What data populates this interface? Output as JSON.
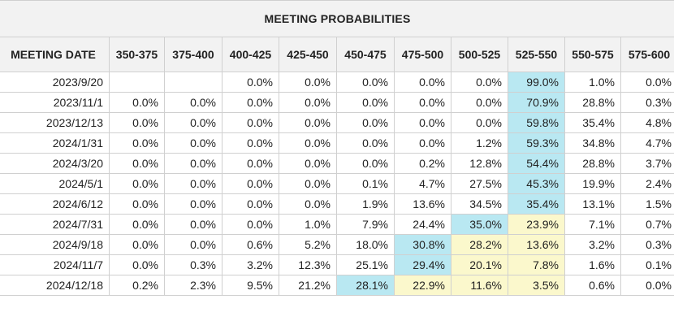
{
  "title": "MEETING PROBABILITIES",
  "colors": {
    "current_target": "#b9e8f2",
    "above_current": "#fbf8cc",
    "header_bg": "#f2f2f2"
  },
  "columns": [
    "MEETING DATE",
    "350-375",
    "375-400",
    "400-425",
    "425-450",
    "450-475",
    "475-500",
    "500-525",
    "525-550",
    "550-575",
    "575-600"
  ],
  "rows": [
    {
      "date": "2023/9/20",
      "cells": [
        "",
        "",
        "0.0%",
        "0.0%",
        "0.0%",
        "0.0%",
        "0.0%",
        "99.0%",
        "1.0%",
        "0.0%"
      ],
      "hl": [
        "",
        "",
        "",
        "",
        "",
        "",
        "",
        "b",
        "",
        ""
      ]
    },
    {
      "date": "2023/11/1",
      "cells": [
        "0.0%",
        "0.0%",
        "0.0%",
        "0.0%",
        "0.0%",
        "0.0%",
        "0.0%",
        "70.9%",
        "28.8%",
        "0.3%"
      ],
      "hl": [
        "",
        "",
        "",
        "",
        "",
        "",
        "",
        "b",
        "",
        ""
      ]
    },
    {
      "date": "2023/12/13",
      "cells": [
        "0.0%",
        "0.0%",
        "0.0%",
        "0.0%",
        "0.0%",
        "0.0%",
        "0.0%",
        "59.8%",
        "35.4%",
        "4.8%"
      ],
      "hl": [
        "",
        "",
        "",
        "",
        "",
        "",
        "",
        "b",
        "",
        ""
      ]
    },
    {
      "date": "2024/1/31",
      "cells": [
        "0.0%",
        "0.0%",
        "0.0%",
        "0.0%",
        "0.0%",
        "0.0%",
        "1.2%",
        "59.3%",
        "34.8%",
        "4.7%"
      ],
      "hl": [
        "",
        "",
        "",
        "",
        "",
        "",
        "",
        "b",
        "",
        ""
      ]
    },
    {
      "date": "2024/3/20",
      "cells": [
        "0.0%",
        "0.0%",
        "0.0%",
        "0.0%",
        "0.0%",
        "0.2%",
        "12.8%",
        "54.4%",
        "28.8%",
        "3.7%"
      ],
      "hl": [
        "",
        "",
        "",
        "",
        "",
        "",
        "",
        "b",
        "",
        ""
      ]
    },
    {
      "date": "2024/5/1",
      "cells": [
        "0.0%",
        "0.0%",
        "0.0%",
        "0.0%",
        "0.1%",
        "4.7%",
        "27.5%",
        "45.3%",
        "19.9%",
        "2.4%"
      ],
      "hl": [
        "",
        "",
        "",
        "",
        "",
        "",
        "",
        "b",
        "",
        ""
      ]
    },
    {
      "date": "2024/6/12",
      "cells": [
        "0.0%",
        "0.0%",
        "0.0%",
        "0.0%",
        "1.9%",
        "13.6%",
        "34.5%",
        "35.4%",
        "13.1%",
        "1.5%"
      ],
      "hl": [
        "",
        "",
        "",
        "",
        "",
        "",
        "",
        "b",
        "",
        ""
      ]
    },
    {
      "date": "2024/7/31",
      "cells": [
        "0.0%",
        "0.0%",
        "0.0%",
        "1.0%",
        "7.9%",
        "24.4%",
        "35.0%",
        "23.9%",
        "7.1%",
        "0.7%"
      ],
      "hl": [
        "",
        "",
        "",
        "",
        "",
        "",
        "b",
        "y",
        "",
        ""
      ]
    },
    {
      "date": "2024/9/18",
      "cells": [
        "0.0%",
        "0.0%",
        "0.6%",
        "5.2%",
        "18.0%",
        "30.8%",
        "28.2%",
        "13.6%",
        "3.2%",
        "0.3%"
      ],
      "hl": [
        "",
        "",
        "",
        "",
        "",
        "b",
        "y",
        "y",
        "",
        ""
      ]
    },
    {
      "date": "2024/11/7",
      "cells": [
        "0.0%",
        "0.3%",
        "3.2%",
        "12.3%",
        "25.1%",
        "29.4%",
        "20.1%",
        "7.8%",
        "1.6%",
        "0.1%"
      ],
      "hl": [
        "",
        "",
        "",
        "",
        "",
        "b",
        "y",
        "y",
        "",
        ""
      ]
    },
    {
      "date": "2024/12/18",
      "cells": [
        "0.2%",
        "2.3%",
        "9.5%",
        "21.2%",
        "28.1%",
        "22.9%",
        "11.6%",
        "3.5%",
        "0.6%",
        "0.0%"
      ],
      "hl": [
        "",
        "",
        "",
        "",
        "b",
        "y",
        "y",
        "y",
        "",
        ""
      ]
    }
  ]
}
